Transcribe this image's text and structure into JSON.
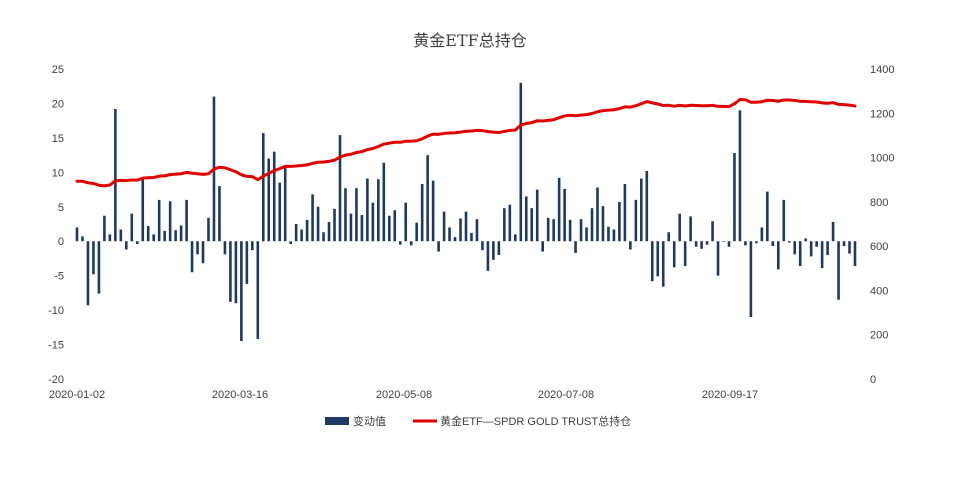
{
  "chart_data": {
    "type": "bar+line",
    "title": "黄金ETF总持仓",
    "x_tick_labels": [
      "2020-01-02",
      "2020-03-16",
      "2020-05-08",
      "2020-07-08",
      "2020-09-17"
    ],
    "left_axis": {
      "min": -20,
      "max": 25,
      "step": 5,
      "ticks": [
        "25",
        "20",
        "15",
        "10",
        "5",
        "0",
        "-5",
        "-10",
        "-15",
        "-20"
      ]
    },
    "right_axis": {
      "min": 0,
      "max": 1400,
      "step": 200,
      "ticks": [
        "1400",
        "1200",
        "1000",
        "800",
        "600",
        "400",
        "200",
        "0"
      ]
    },
    "series": [
      {
        "name": "变动值",
        "type": "bar",
        "axis": "left",
        "color": "#1f3864",
        "values": [
          2.0,
          0.7,
          -9.3,
          -4.8,
          -7.6,
          3.7,
          1.0,
          19.2,
          1.7,
          -1.2,
          4.0,
          -0.4,
          9.2,
          2.2,
          1.0,
          6.0,
          1.5,
          5.8,
          1.6,
          2.3,
          6.0,
          -4.5,
          -1.9,
          -3.2,
          3.4,
          21.0,
          8.0,
          -1.9,
          -8.8,
          -9.0,
          -14.5,
          -6.2,
          -1.3,
          -14.2,
          15.7,
          12.0,
          13.0,
          8.5,
          10.8,
          -0.4,
          2.5,
          1.7,
          3.1,
          6.8,
          5.0,
          1.3,
          2.8,
          4.7,
          15.4,
          7.7,
          4.0,
          7.7,
          3.8,
          9.1,
          5.6,
          9.0,
          11.4,
          3.7,
          4.5,
          -0.5,
          5.6,
          -0.6,
          2.7,
          8.3,
          12.5,
          8.8,
          -1.5,
          4.3,
          2.0,
          0.6,
          3.3,
          4.3,
          1.2,
          3.2,
          -1.3,
          -4.3,
          -2.7,
          -2.0,
          4.8,
          5.3,
          1.0,
          23.0,
          6.5,
          4.8,
          7.5,
          -1.5,
          3.4,
          3.2,
          9.2,
          7.6,
          3.1,
          -1.7,
          3.2,
          2.0,
          4.8,
          7.8,
          5.1,
          2.1,
          1.7,
          5.7,
          8.3,
          -1.2,
          6.0,
          9.1,
          10.2,
          -5.8,
          -5.1,
          -6.6,
          1.3,
          -3.8,
          4.0,
          -3.6,
          3.6,
          -0.8,
          -1.1,
          -0.5,
          2.9,
          -5.0,
          -0.1,
          -0.8,
          12.8,
          19.0,
          -0.6,
          -11.0,
          -0.3,
          2.0,
          7.2,
          -0.7,
          -4.1,
          6.0,
          -0.2,
          -1.9,
          -3.6,
          0.4,
          -2.2,
          -0.8,
          -3.9,
          -2.0,
          2.8,
          -8.5,
          -0.7,
          -1.8,
          -3.6
        ]
      },
      {
        "name": "黄金ETF—SPDR GOLD TRUST总持仓",
        "type": "line",
        "axis": "right",
        "color": "#e00000",
        "values": [
          893,
          893,
          886,
          883,
          875,
          872,
          876,
          895,
          897,
          896,
          899,
          898,
          907,
          909,
          910,
          916,
          918,
          923,
          925,
          927,
          933,
          929,
          927,
          924,
          927,
          948,
          956,
          954,
          945,
          936,
          922,
          915,
          914,
          900,
          916,
          928,
          941,
          950,
          960,
          960,
          962,
          964,
          967,
          974,
          979,
          980,
          983,
          988,
          1003,
          1011,
          1015,
          1023,
          1027,
          1036,
          1041,
          1050,
          1061,
          1065,
          1069,
          1069,
          1074,
          1074,
          1076,
          1085,
          1097,
          1106,
          1105,
          1109,
          1111,
          1112,
          1115,
          1119,
          1120,
          1123,
          1122,
          1117,
          1115,
          1113,
          1118,
          1123,
          1124,
          1147,
          1154,
          1158,
          1166,
          1165,
          1168,
          1171,
          1180,
          1188,
          1191,
          1189,
          1192,
          1194,
          1199,
          1207,
          1212,
          1214,
          1216,
          1221,
          1229,
          1228,
          1234,
          1243,
          1253,
          1247,
          1242,
          1235,
          1236,
          1232,
          1236,
          1233,
          1236,
          1235,
          1234,
          1234,
          1236,
          1231,
          1231,
          1230,
          1243,
          1262,
          1261,
          1250,
          1250,
          1252,
          1259,
          1258,
          1254,
          1260,
          1260,
          1258,
          1254,
          1254,
          1252,
          1251,
          1247,
          1245,
          1248,
          1240,
          1239,
          1237,
          1233
        ]
      }
    ],
    "legend": {
      "position": "bottom-center"
    },
    "grid": false
  }
}
